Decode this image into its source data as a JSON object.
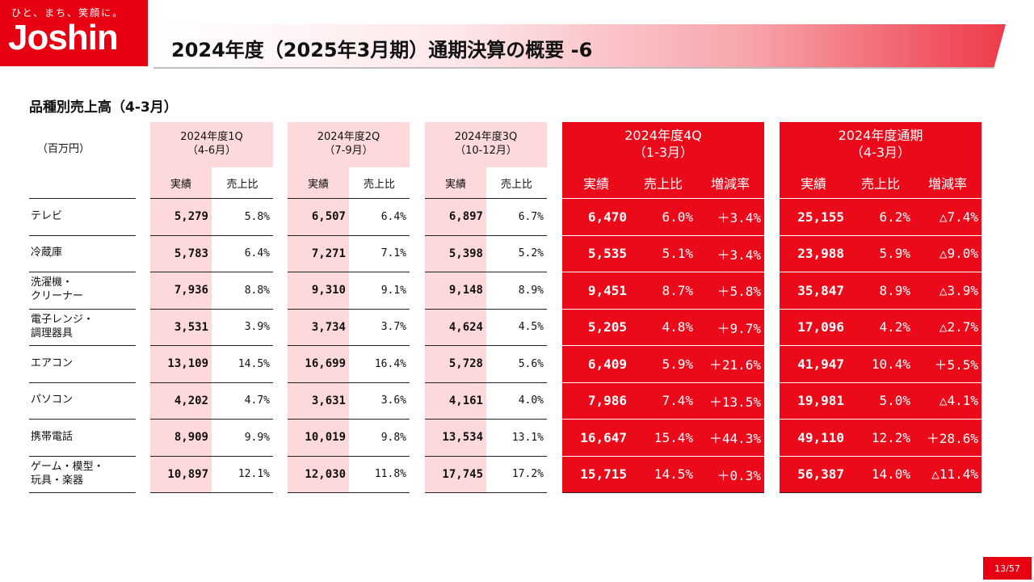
{
  "logo": {
    "tagline": "ひと、まち、笑顔に。",
    "name": "Joshin"
  },
  "title": "2024年度（2025年3月期）通期決算の概要 -6",
  "section_title": "品種別売上高（4-3月）",
  "unit": "（百万円）",
  "groups": [
    {
      "line1": "2024年度1Q",
      "line2": "（4-6月）",
      "col_actual": "実績",
      "col_ratio": "売上比"
    },
    {
      "line1": "2024年度2Q",
      "line2": "（7-9月）",
      "col_actual": "実績",
      "col_ratio": "売上比"
    },
    {
      "line1": "2024年度3Q",
      "line2": "（10-12月）",
      "col_actual": "実績",
      "col_ratio": "売上比"
    },
    {
      "line1": "2024年度4Q",
      "line2": "（1-3月）",
      "col_actual": "実績",
      "col_ratio": "売上比",
      "col_change": "増減率"
    },
    {
      "line1": "2024年度通期",
      "line2": "（4-3月）",
      "col_actual": "実績",
      "col_ratio": "売上比",
      "col_change": "増減率"
    }
  ],
  "rows": [
    {
      "label1": "テレビ",
      "label2": "",
      "q1": "5,279",
      "q1r": "5.8%",
      "q2": "6,507",
      "q2r": "6.4%",
      "q3": "6,897",
      "q3r": "6.7%",
      "q4": "6,470",
      "q4r": "6.0%",
      "q4c": "＋3.4%",
      "fy": "25,155",
      "fyr": "6.2%",
      "fyc": "△7.4%"
    },
    {
      "label1": "冷蔵庫",
      "label2": "",
      "q1": "5,783",
      "q1r": "6.4%",
      "q2": "7,271",
      "q2r": "7.1%",
      "q3": "5,398",
      "q3r": "5.2%",
      "q4": "5,535",
      "q4r": "5.1%",
      "q4c": "＋3.4%",
      "fy": "23,988",
      "fyr": "5.9%",
      "fyc": "△9.0%"
    },
    {
      "label1": "洗濯機・",
      "label2": "クリーナー",
      "q1": "7,936",
      "q1r": "8.8%",
      "q2": "9,310",
      "q2r": "9.1%",
      "q3": "9,148",
      "q3r": "8.9%",
      "q4": "9,451",
      "q4r": "8.7%",
      "q4c": "＋5.8%",
      "fy": "35,847",
      "fyr": "8.9%",
      "fyc": "△3.9%"
    },
    {
      "label1": "電子レンジ・",
      "label2": "調理器具",
      "q1": "3,531",
      "q1r": "3.9%",
      "q2": "3,734",
      "q2r": "3.7%",
      "q3": "4,624",
      "q3r": "4.5%",
      "q4": "5,205",
      "q4r": "4.8%",
      "q4c": "＋9.7%",
      "fy": "17,096",
      "fyr": "4.2%",
      "fyc": "△2.7%"
    },
    {
      "label1": "エアコン",
      "label2": "",
      "q1": "13,109",
      "q1r": "14.5%",
      "q2": "16,699",
      "q2r": "16.4%",
      "q3": "5,728",
      "q3r": "5.6%",
      "q4": "6,409",
      "q4r": "5.9%",
      "q4c": "＋21.6%",
      "fy": "41,947",
      "fyr": "10.4%",
      "fyc": "＋5.5%"
    },
    {
      "label1": "パソコン",
      "label2": "",
      "q1": "4,202",
      "q1r": "4.7%",
      "q2": "3,631",
      "q2r": "3.6%",
      "q3": "4,161",
      "q3r": "4.0%",
      "q4": "7,986",
      "q4r": "7.4%",
      "q4c": "＋13.5%",
      "fy": "19,981",
      "fyr": "5.0%",
      "fyc": "△4.1%"
    },
    {
      "label1": "携帯電話",
      "label2": "",
      "q1": "8,909",
      "q1r": "9.9%",
      "q2": "10,019",
      "q2r": "9.8%",
      "q3": "13,534",
      "q3r": "13.1%",
      "q4": "16,647",
      "q4r": "15.4%",
      "q4c": "＋44.3%",
      "fy": "49,110",
      "fyr": "12.2%",
      "fyc": "＋28.6%"
    },
    {
      "label1": "ゲーム・模型・",
      "label2": "玩具・楽器",
      "q1": "10,897",
      "q1r": "12.1%",
      "q2": "12,030",
      "q2r": "11.8%",
      "q3": "17,745",
      "q3r": "17.2%",
      "q4": "15,715",
      "q4r": "14.5%",
      "q4c": "＋0.3%",
      "fy": "56,387",
      "fyr": "14.0%",
      "fyc": "△11.4%"
    }
  ],
  "page_number": "13/57",
  "colors": {
    "brand_red": "#e60012",
    "light_pink": "#fdd9dc"
  }
}
